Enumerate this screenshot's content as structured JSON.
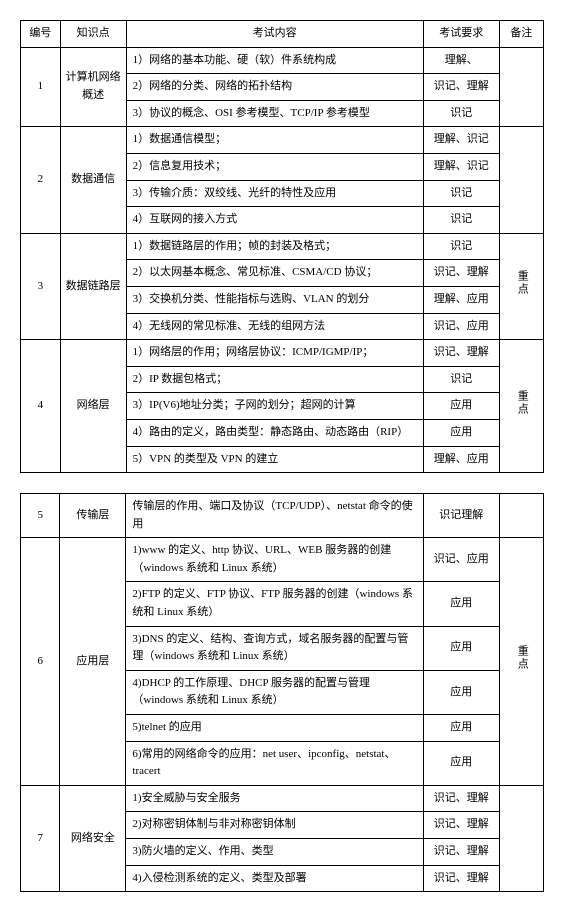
{
  "headers": {
    "num": "编号",
    "topic": "知识点",
    "content": "考试内容",
    "req": "考试要求",
    "note": "备注"
  },
  "table1": {
    "sections": [
      {
        "num": "1",
        "topic": "计算机网络概述",
        "note": "",
        "rows": [
          {
            "content": "1）网络的基本功能、硬（软）件系统构成",
            "req": "理解、"
          },
          {
            "content": "2）网络的分类、网络的拓扑结构",
            "req": "识记、理解"
          },
          {
            "content": "3）协议的概念、OSI 参考模型、TCP/IP 参考模型",
            "req": "识记"
          }
        ]
      },
      {
        "num": "2",
        "topic": "数据通信",
        "note": "",
        "rows": [
          {
            "content": "1）数据通信模型；",
            "req": "理解、识记"
          },
          {
            "content": "2）信息复用技术；",
            "req": "理解、识记"
          },
          {
            "content": "3）传输介质：双绞线、光纤的特性及应用",
            "req": "识记"
          },
          {
            "content": "4）互联网的接入方式",
            "req": "识记"
          }
        ]
      },
      {
        "num": "3",
        "topic": "数据链路层",
        "note": "重点",
        "rows": [
          {
            "content": "1）数据链路层的作用；帧的封装及格式；",
            "req": "识记"
          },
          {
            "content": "2）以太网基本概念、常见标准、CSMA/CD 协议；",
            "req": "识记、理解"
          },
          {
            "content": "3）交换机分类、性能指标与选购、VLAN 的划分",
            "req": "理解、应用"
          },
          {
            "content": "4）无线网的常见标准、无线的组网方法",
            "req": "识记、应用"
          }
        ]
      },
      {
        "num": "4",
        "topic": "网络层",
        "note": "重点",
        "rows": [
          {
            "content": "1）网络层的作用；网络层协议：ICMP/IGMP/IP；",
            "req": "识记、理解"
          },
          {
            "content": "2）IP 数据包格式；",
            "req": "识记"
          },
          {
            "content": "3）IP(V6)地址分类；子网的划分；超网的计算",
            "req": "应用"
          },
          {
            "content": "4）路由的定义，路由类型：静态路由、动态路由（RIP）",
            "req": "应用"
          },
          {
            "content": "5）VPN 的类型及 VPN 的建立",
            "req": "理解、应用"
          }
        ]
      }
    ]
  },
  "table2": {
    "sections": [
      {
        "num": "5",
        "topic": "传输层",
        "note": "",
        "rows": [
          {
            "content": "传输层的作用、端口及协议（TCP/UDP）、netstat 命令的使用",
            "req": "识记理解"
          }
        ]
      },
      {
        "num": "6",
        "topic": "应用层",
        "note": "重点",
        "rows": [
          {
            "content": "1)www 的定义、http 协议、URL、WEB 服务器的创建（windows 系统和 Linux 系统）",
            "req": "识记、应用"
          },
          {
            "content": "2)FTP 的定义、FTP 协议、FTP 服务器的创建（windows 系统和 Linux 系统）",
            "req": "应用"
          },
          {
            "content": "3)DNS 的定义、结构、查询方式，域名服务器的配置与管理（windows 系统和 Linux 系统）",
            "req": "应用"
          },
          {
            "content": "4)DHCP 的工作原理、DHCP 服务器的配置与管理（windows 系统和 Linux 系统）",
            "req": "应用"
          },
          {
            "content": "5)telnet 的应用",
            "req": "应用"
          },
          {
            "content": "6)常用的网络命令的应用：net user、ipconfig、netstat、tracert",
            "req": "应用"
          }
        ]
      },
      {
        "num": "7",
        "topic": "网络安全",
        "note": "",
        "rows": [
          {
            "content": "1)安全威胁与安全服务",
            "req": "识记、理解"
          },
          {
            "content": "2)对称密钥体制与非对称密钥体制",
            "req": "识记、理解"
          },
          {
            "content": "3)防火墙的定义、作用、类型",
            "req": "识记、理解"
          },
          {
            "content": "4)入侵检测系统的定义、类型及部署",
            "req": "识记、理解"
          }
        ]
      }
    ]
  }
}
